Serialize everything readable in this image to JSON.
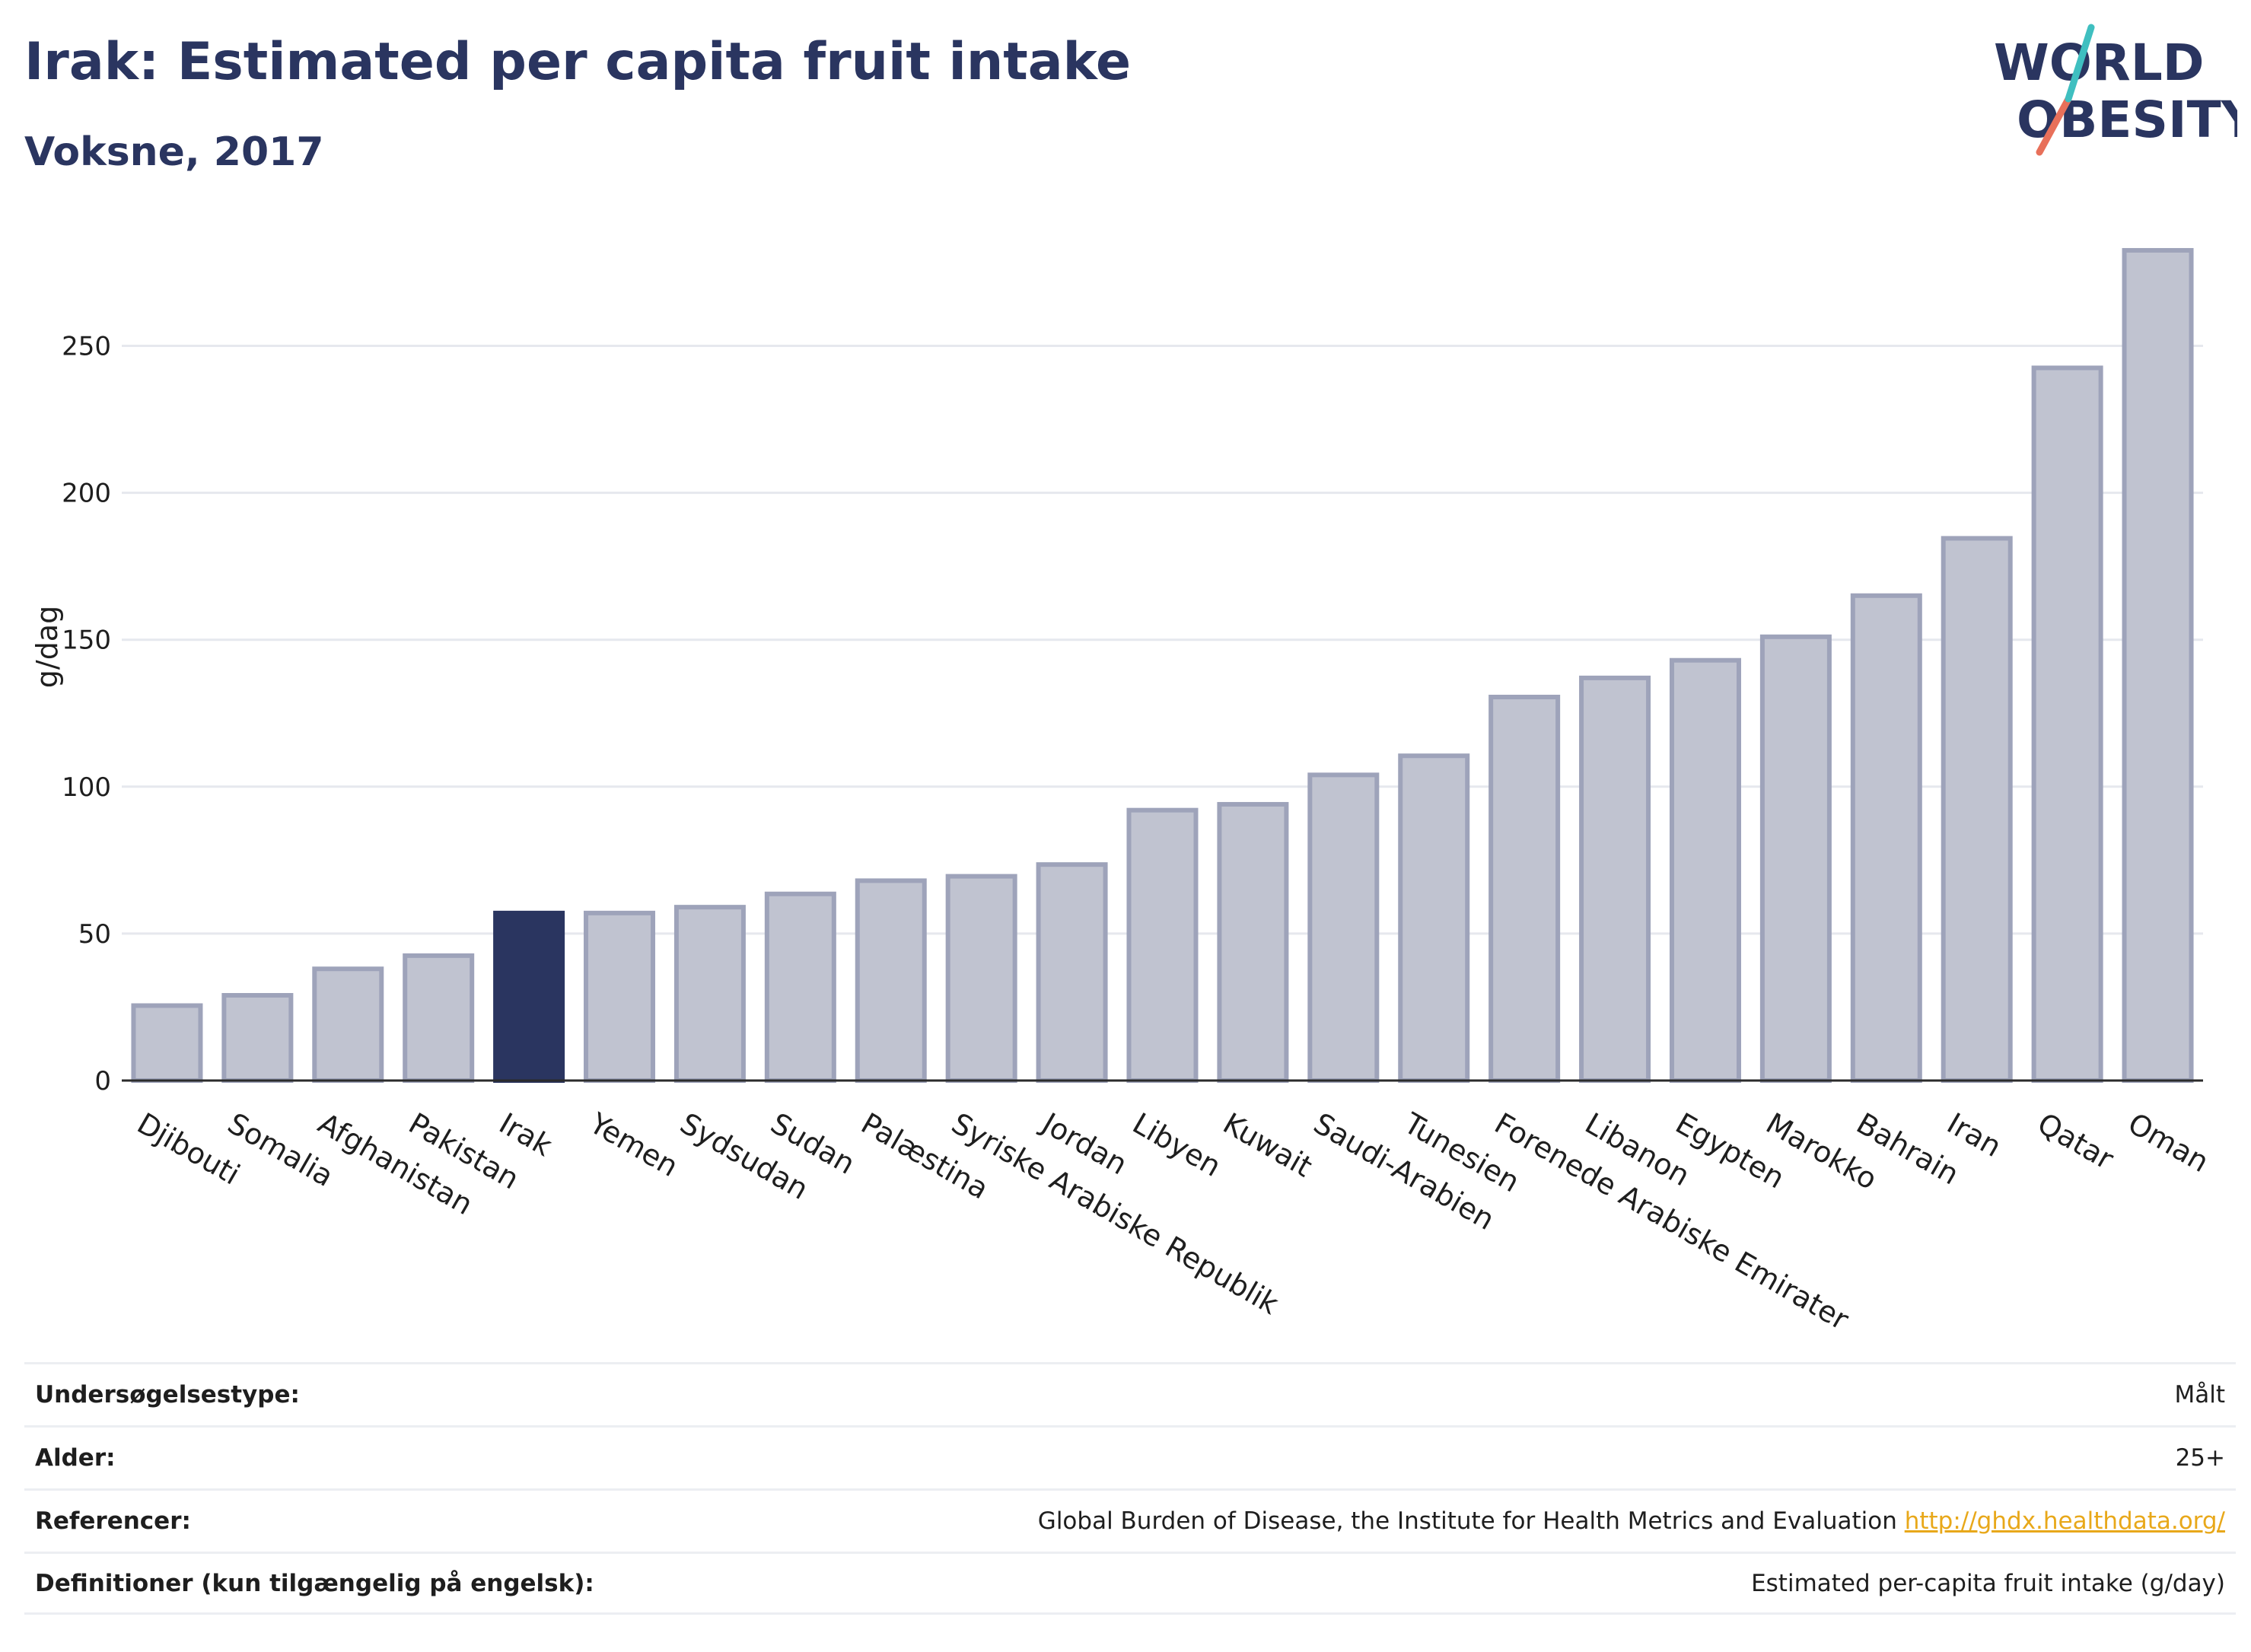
{
  "title": "Irak: Estimated per capita fruit intake",
  "subtitle": "Voksne, 2017",
  "logo": {
    "line1": "WORLD",
    "line2": "OBESITY"
  },
  "colors": {
    "highlight": "#2a3560",
    "bar_fill": "#c0c3d0",
    "bar_stroke": "#9ea3ba",
    "grid": "#e6e8ee",
    "link": "#e8a81a"
  },
  "chart_data": {
    "type": "bar",
    "ylabel": "g/dag",
    "xlabel": "",
    "ylim": [
      0,
      290
    ],
    "yticks": [
      0,
      50,
      100,
      150,
      200,
      250
    ],
    "grid": true,
    "highlight": "Irak",
    "categories": [
      "Djibouti",
      "Somalia",
      "Afghanistan",
      "Pakistan",
      "Irak",
      "Yemen",
      "Sydsudan",
      "Sudan",
      "Palæstina",
      "Syriske Arabiske Republik",
      "Jordan",
      "Libyen",
      "Kuwait",
      "Saudi-Arabien",
      "Tunesien",
      "Forenede Arabiske Emirater",
      "Libanon",
      "Egypten",
      "Marokko",
      "Bahrain",
      "Iran",
      "Qatar",
      "Oman"
    ],
    "values": [
      25.5,
      29,
      38,
      42.5,
      57,
      57,
      59,
      63.5,
      68,
      69.5,
      73.5,
      92,
      94,
      104,
      110.5,
      130.5,
      137,
      143,
      151,
      165,
      184.5,
      242.5,
      282.5
    ]
  },
  "info": [
    {
      "label": "Undersøgelsestype:",
      "value": "Målt"
    },
    {
      "label": "Alder:",
      "value": "25+"
    },
    {
      "label": "Referencer:",
      "value": "Global Burden of Disease, the Institute for Health Metrics and Evaluation",
      "link": "http://ghdx.healthdata.org/"
    },
    {
      "label": "Definitioner (kun tilgængelig på engelsk):",
      "value": "Estimated per-capita fruit intake (g/day)"
    }
  ]
}
